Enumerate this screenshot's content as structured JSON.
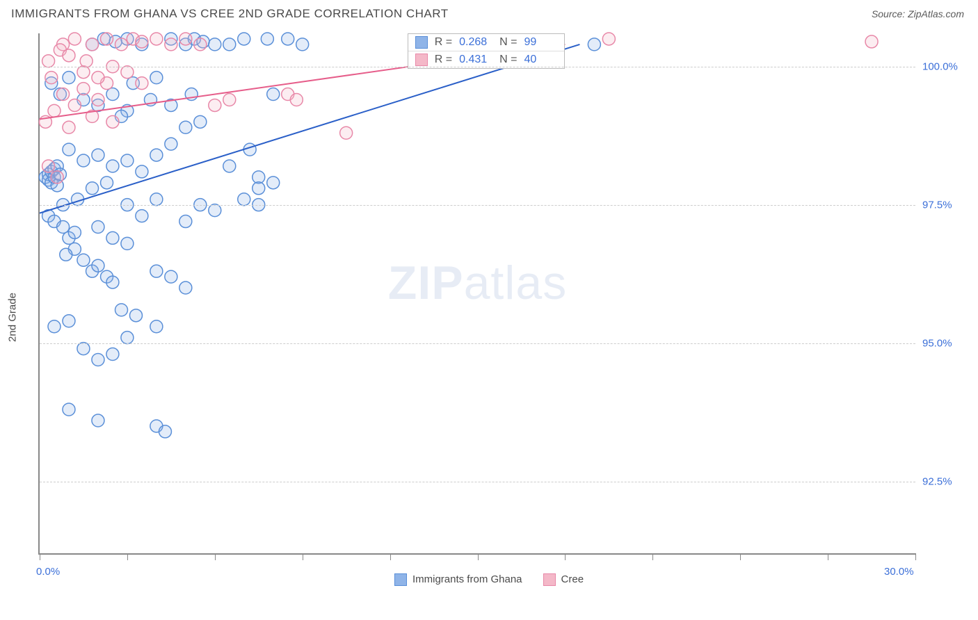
{
  "header": {
    "title": "IMMIGRANTS FROM GHANA VS CREE 2ND GRADE CORRELATION CHART",
    "source": "Source: ZipAtlas.com"
  },
  "chart": {
    "type": "scatter",
    "y_axis_title": "2nd Grade",
    "background_color": "#ffffff",
    "grid_color": "#cccccc",
    "axis_color": "#888888",
    "xlim": [
      0,
      30
    ],
    "ylim": [
      91.2,
      100.6
    ],
    "x_ticks": [
      0,
      3,
      6,
      9,
      12,
      15,
      18,
      21,
      24,
      27,
      30
    ],
    "x_tick_labels": {
      "0": "0.0%",
      "30": "30.0%"
    },
    "y_ticks": [
      92.5,
      95.0,
      97.5,
      100.0
    ],
    "y_tick_labels": [
      "92.5%",
      "95.0%",
      "97.5%",
      "100.0%"
    ],
    "marker_radius": 9,
    "marker_stroke_width": 1.5,
    "marker_fill_opacity": 0.25,
    "trend_line_width": 2,
    "series": [
      {
        "name": "Immigrants from Ghana",
        "color_fill": "#8fb4e8",
        "color_stroke": "#5a8fd8",
        "line_color": "#2a5fc8",
        "R": "0.268",
        "N": "99",
        "trend": {
          "x1": 0.0,
          "y1": 97.35,
          "x2": 18.5,
          "y2": 100.4
        },
        "points": [
          [
            0.2,
            98.0
          ],
          [
            0.3,
            98.05
          ],
          [
            0.3,
            97.95
          ],
          [
            0.4,
            98.1
          ],
          [
            0.4,
            97.9
          ],
          [
            0.5,
            98.0
          ],
          [
            0.5,
            98.15
          ],
          [
            0.6,
            97.85
          ],
          [
            0.6,
            98.2
          ],
          [
            0.7,
            98.05
          ],
          [
            0.3,
            97.3
          ],
          [
            0.5,
            97.2
          ],
          [
            0.8,
            97.1
          ],
          [
            1.0,
            96.9
          ],
          [
            1.2,
            96.7
          ],
          [
            1.5,
            96.5
          ],
          [
            1.8,
            96.3
          ],
          [
            2.0,
            96.4
          ],
          [
            2.3,
            96.2
          ],
          [
            2.5,
            96.1
          ],
          [
            0.5,
            95.3
          ],
          [
            1.0,
            95.4
          ],
          [
            1.5,
            94.9
          ],
          [
            2.0,
            94.7
          ],
          [
            2.5,
            94.8
          ],
          [
            3.0,
            95.1
          ],
          [
            1.0,
            93.8
          ],
          [
            2.0,
            93.6
          ],
          [
            4.0,
            93.5
          ],
          [
            4.3,
            93.4
          ],
          [
            1.8,
            100.4
          ],
          [
            2.2,
            100.5
          ],
          [
            2.6,
            100.45
          ],
          [
            3.0,
            100.5
          ],
          [
            3.5,
            100.4
          ],
          [
            4.5,
            100.5
          ],
          [
            5.0,
            100.4
          ],
          [
            5.3,
            100.5
          ],
          [
            5.6,
            100.45
          ],
          [
            6.0,
            100.4
          ],
          [
            7.0,
            100.5
          ],
          [
            8.5,
            100.5
          ],
          [
            9.0,
            100.4
          ],
          [
            1.5,
            99.4
          ],
          [
            2.0,
            99.3
          ],
          [
            2.5,
            99.5
          ],
          [
            3.0,
            99.2
          ],
          [
            3.8,
            99.4
          ],
          [
            4.5,
            99.3
          ],
          [
            5.0,
            98.9
          ],
          [
            5.5,
            99.0
          ],
          [
            1.0,
            98.5
          ],
          [
            1.5,
            98.3
          ],
          [
            2.0,
            98.4
          ],
          [
            2.5,
            98.2
          ],
          [
            3.0,
            98.3
          ],
          [
            3.5,
            98.1
          ],
          [
            4.0,
            98.4
          ],
          [
            4.5,
            98.6
          ],
          [
            3.0,
            97.5
          ],
          [
            3.5,
            97.3
          ],
          [
            4.0,
            97.6
          ],
          [
            5.0,
            97.2
          ],
          [
            5.5,
            97.5
          ],
          [
            6.0,
            97.4
          ],
          [
            7.0,
            97.6
          ],
          [
            7.5,
            97.5
          ],
          [
            2.0,
            97.1
          ],
          [
            2.5,
            96.9
          ],
          [
            3.0,
            96.8
          ],
          [
            4.0,
            96.3
          ],
          [
            4.5,
            96.2
          ],
          [
            5.0,
            96.0
          ],
          [
            2.8,
            95.6
          ],
          [
            3.3,
            95.5
          ],
          [
            4.0,
            95.3
          ],
          [
            8.0,
            99.5
          ],
          [
            7.5,
            98.0
          ],
          [
            8.0,
            97.9
          ],
          [
            19.0,
            100.4
          ],
          [
            6.5,
            100.4
          ],
          [
            7.8,
            100.5
          ],
          [
            3.2,
            99.7
          ],
          [
            4.0,
            99.8
          ],
          [
            2.8,
            99.1
          ],
          [
            5.2,
            99.5
          ],
          [
            1.3,
            97.6
          ],
          [
            1.8,
            97.8
          ],
          [
            0.8,
            97.5
          ],
          [
            1.2,
            97.0
          ],
          [
            0.9,
            96.6
          ],
          [
            2.3,
            97.9
          ],
          [
            6.5,
            98.2
          ],
          [
            7.2,
            98.5
          ],
          [
            7.5,
            97.8
          ],
          [
            0.4,
            99.7
          ],
          [
            0.7,
            99.5
          ],
          [
            1.0,
            99.8
          ]
        ]
      },
      {
        "name": "Cree",
        "color_fill": "#f4b8c8",
        "color_stroke": "#e888a8",
        "line_color": "#e65d8a",
        "R": "0.431",
        "N": "40",
        "trend": {
          "x1": 0.0,
          "y1": 99.05,
          "x2": 18.0,
          "y2": 100.4
        },
        "points": [
          [
            0.5,
            99.2
          ],
          [
            0.8,
            99.5
          ],
          [
            1.0,
            98.9
          ],
          [
            1.2,
            99.3
          ],
          [
            1.5,
            99.6
          ],
          [
            1.8,
            99.1
          ],
          [
            2.0,
            99.4
          ],
          [
            2.3,
            99.7
          ],
          [
            2.5,
            99.0
          ],
          [
            0.3,
            98.2
          ],
          [
            0.6,
            98.0
          ],
          [
            0.8,
            100.4
          ],
          [
            1.2,
            100.5
          ],
          [
            1.8,
            100.4
          ],
          [
            2.3,
            100.5
          ],
          [
            2.8,
            100.4
          ],
          [
            3.2,
            100.5
          ],
          [
            3.5,
            100.45
          ],
          [
            4.0,
            100.5
          ],
          [
            4.5,
            100.4
          ],
          [
            5.0,
            100.5
          ],
          [
            5.5,
            100.4
          ],
          [
            1.5,
            99.9
          ],
          [
            2.0,
            99.8
          ],
          [
            2.5,
            100.0
          ],
          [
            3.0,
            99.9
          ],
          [
            3.5,
            99.7
          ],
          [
            6.0,
            99.3
          ],
          [
            6.5,
            99.4
          ],
          [
            8.5,
            99.5
          ],
          [
            8.8,
            99.4
          ],
          [
            10.5,
            98.8
          ],
          [
            28.5,
            100.45
          ],
          [
            19.5,
            100.5
          ],
          [
            0.2,
            99.0
          ],
          [
            0.4,
            99.8
          ],
          [
            0.3,
            100.1
          ],
          [
            0.7,
            100.3
          ],
          [
            1.0,
            100.2
          ],
          [
            1.6,
            100.1
          ]
        ]
      }
    ],
    "watermark": {
      "bold": "ZIP",
      "light": "atlas"
    },
    "bottom_legend": [
      {
        "label": "Immigrants from Ghana",
        "fill": "#8fb4e8",
        "stroke": "#5a8fd8"
      },
      {
        "label": "Cree",
        "fill": "#f4b8c8",
        "stroke": "#e888a8"
      }
    ]
  }
}
